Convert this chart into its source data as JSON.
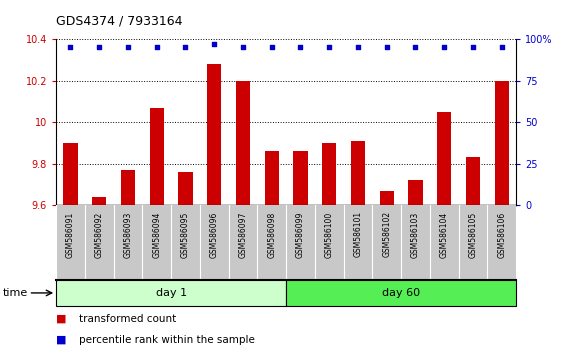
{
  "title": "GDS4374 / 7933164",
  "samples": [
    "GSM586091",
    "GSM586092",
    "GSM586093",
    "GSM586094",
    "GSM586095",
    "GSM586096",
    "GSM586097",
    "GSM586098",
    "GSM586099",
    "GSM586100",
    "GSM586101",
    "GSM586102",
    "GSM586103",
    "GSM586104",
    "GSM586105",
    "GSM586106"
  ],
  "bar_values": [
    9.9,
    9.64,
    9.77,
    10.07,
    9.76,
    10.28,
    10.2,
    9.86,
    9.86,
    9.9,
    9.91,
    9.67,
    9.72,
    10.05,
    9.83,
    10.2
  ],
  "percentile_values": [
    95,
    95,
    95,
    95,
    95,
    97,
    95,
    95,
    95,
    95,
    95,
    95,
    95,
    95,
    95,
    95
  ],
  "bar_color": "#cc0000",
  "percentile_color": "#0000cc",
  "ylim_left": [
    9.6,
    10.4
  ],
  "ylim_right": [
    0,
    100
  ],
  "yticks_left": [
    9.6,
    9.8,
    10.0,
    10.2,
    10.4
  ],
  "yticks_right": [
    0,
    25,
    50,
    75,
    100
  ],
  "ytick_labels_right": [
    "0",
    "25",
    "50",
    "75",
    "100%"
  ],
  "day1_samples": 8,
  "day60_samples": 8,
  "day1_label": "day 1",
  "day60_label": "day 60",
  "day1_color": "#ccffcc",
  "day60_color": "#55ee55",
  "time_label": "time",
  "legend_bar_label": "transformed count",
  "legend_pct_label": "percentile rank within the sample",
  "plot_bg_color": "#ffffff",
  "label_bg_color": "#c8c8c8",
  "bar_width": 0.5,
  "figsize": [
    5.61,
    3.54
  ],
  "dpi": 100
}
